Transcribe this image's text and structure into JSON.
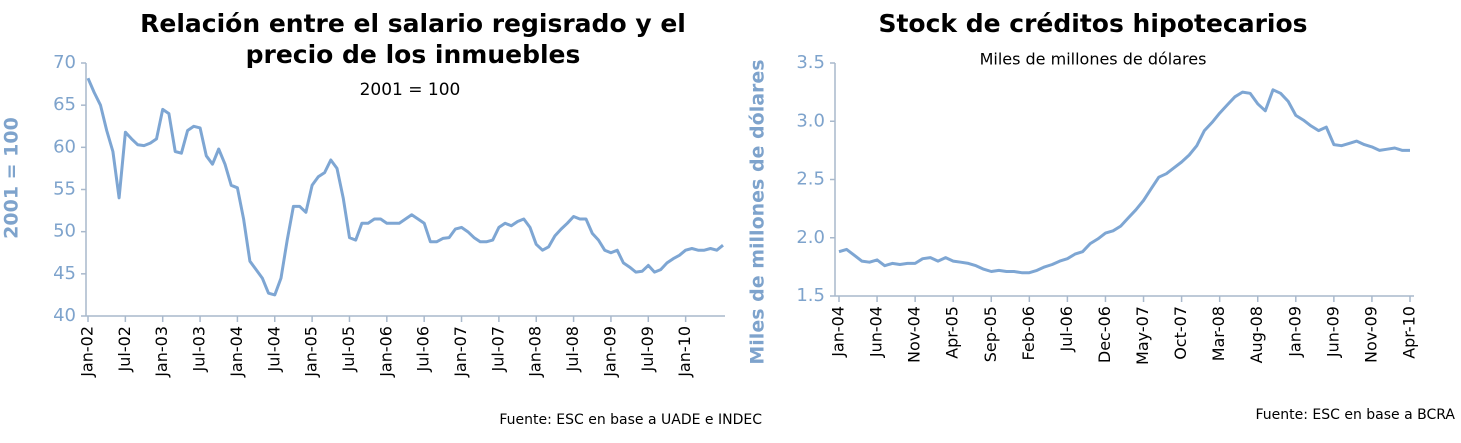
{
  "chart_data": [
    {
      "type": "line",
      "title": "Relación entre el salario regisrado y el precio de los inmuebles",
      "subtitle": "2001 = 100",
      "ylabel": "2001 = 100",
      "source": "Fuente: ESC en base a UADE e INDEC",
      "color": "#7ea6d3",
      "categories": [
        "Jan-02",
        null,
        null,
        null,
        null,
        null,
        "Jul-02",
        null,
        null,
        null,
        null,
        null,
        "Jan-03",
        null,
        null,
        null,
        null,
        null,
        "Jul-03",
        null,
        null,
        null,
        null,
        null,
        "Jan-04",
        null,
        null,
        null,
        null,
        null,
        "Jul-04",
        null,
        null,
        null,
        null,
        null,
        "Jan-05",
        null,
        null,
        null,
        null,
        null,
        "Jul-05",
        null,
        null,
        null,
        null,
        null,
        "Jan-06",
        null,
        null,
        null,
        null,
        null,
        "Jul-06",
        null,
        null,
        null,
        null,
        null,
        "Jan-07",
        null,
        null,
        null,
        null,
        null,
        "Jul-07",
        null,
        null,
        null,
        null,
        null,
        "Jan-08",
        null,
        null,
        null,
        null,
        null,
        "Jul-08",
        null,
        null,
        null,
        null,
        null,
        "Jan-09",
        null,
        null,
        null,
        null,
        null,
        "Jul-09",
        null,
        null,
        null,
        null,
        null,
        "Jan-10",
        null,
        null,
        null,
        null,
        null,
        null
      ],
      "values": [
        68.2,
        66.5,
        65,
        62,
        59.5,
        54,
        61.8,
        61,
        60.3,
        60.2,
        60.5,
        61,
        64.5,
        64,
        59.5,
        59.3,
        62,
        62.5,
        62.3,
        59,
        58,
        59.8,
        58,
        55.5,
        55.2,
        51.5,
        46.5,
        45.5,
        44.5,
        42.7,
        42.5,
        44.5,
        49,
        53,
        53,
        52.3,
        55.5,
        56.5,
        57,
        58.5,
        57.5,
        54,
        49.3,
        49,
        51,
        51,
        51.5,
        51.5,
        51,
        51,
        51,
        51.5,
        52,
        51.5,
        51,
        48.8,
        48.8,
        49.2,
        49.3,
        50.3,
        50.5,
        50,
        49.3,
        48.8,
        48.8,
        49,
        50.5,
        51,
        50.7,
        51.2,
        51.5,
        50.5,
        48.5,
        47.8,
        48.2,
        49.5,
        50.3,
        51,
        51.8,
        51.5,
        51.5,
        49.8,
        49,
        47.8,
        47.5,
        47.8,
        46.3,
        45.8,
        45.2,
        45.3,
        46,
        45.2,
        45.5,
        46.3,
        46.8,
        47.2,
        47.8,
        48,
        47.8,
        47.8,
        48,
        47.8,
        48.4
      ],
      "ylim": [
        40,
        70
      ],
      "yticks": [
        40,
        45,
        50,
        55,
        60,
        65,
        70
      ]
    },
    {
      "type": "line",
      "title": "Stock de créditos hipotecarios",
      "subtitle": "Miles de millones de dólares",
      "ylabel": "Miles de millones de dólares",
      "source": "Fuente: ESC en base a BCRA",
      "color": "#7ea6d3",
      "categories": [
        "Jan-04",
        null,
        null,
        null,
        null,
        "Jun-04",
        null,
        null,
        null,
        null,
        "Nov-04",
        null,
        null,
        null,
        null,
        "Apr-05",
        null,
        null,
        null,
        null,
        "Sep-05",
        null,
        null,
        null,
        null,
        "Feb-06",
        null,
        null,
        null,
        null,
        "Jul-06",
        null,
        null,
        null,
        null,
        "Dec-06",
        null,
        null,
        null,
        null,
        "May-07",
        null,
        null,
        null,
        null,
        "Oct-07",
        null,
        null,
        null,
        null,
        "Mar-08",
        null,
        null,
        null,
        null,
        "Aug-08",
        null,
        null,
        null,
        null,
        "Jan-09",
        null,
        null,
        null,
        null,
        "Jun-09",
        null,
        null,
        null,
        null,
        "Nov-09",
        null,
        null,
        null,
        null,
        "Apr-10"
      ],
      "values": [
        1.88,
        1.9,
        1.85,
        1.8,
        1.79,
        1.81,
        1.76,
        1.78,
        1.77,
        1.78,
        1.78,
        1.82,
        1.83,
        1.8,
        1.83,
        1.8,
        1.79,
        1.78,
        1.76,
        1.73,
        1.71,
        1.72,
        1.71,
        1.71,
        1.7,
        1.7,
        1.72,
        1.75,
        1.77,
        1.8,
        1.82,
        1.86,
        1.88,
        1.95,
        1.99,
        2.04,
        2.06,
        2.1,
        2.17,
        2.24,
        2.32,
        2.42,
        2.52,
        2.55,
        2.6,
        2.65,
        2.71,
        2.79,
        2.92,
        2.99,
        3.07,
        3.14,
        3.21,
        3.25,
        3.24,
        3.15,
        3.09,
        3.27,
        3.24,
        3.17,
        3.05,
        3.01,
        2.96,
        2.92,
        2.95,
        2.8,
        2.79,
        2.81,
        2.83,
        2.8,
        2.78,
        2.75,
        2.76,
        2.77,
        2.75,
        2.75
      ],
      "ylim": [
        1.5,
        3.5
      ],
      "yticks": [
        1.5,
        {
          "value": 2,
          "label": "2.0"
        },
        2.5,
        {
          "value": 3,
          "label": "3.0"
        },
        3.5
      ]
    }
  ]
}
